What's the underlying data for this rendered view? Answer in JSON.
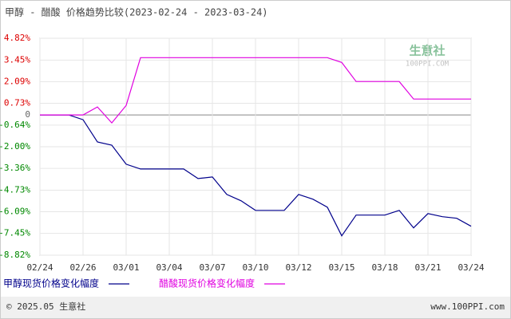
{
  "chart_data": {
    "type": "line",
    "title": "甲醇 - 醋酸 价格趋势比较(2023-02-24 - 2023-03-24)",
    "categories": [
      "02/24",
      null,
      null,
      "02/26",
      null,
      null,
      "03/01",
      null,
      null,
      "03/04",
      null,
      null,
      "03/07",
      null,
      null,
      "03/10",
      null,
      null,
      "03/12",
      null,
      null,
      "03/15",
      null,
      null,
      "03/18",
      null,
      null,
      "03/21",
      null,
      null,
      "03/24"
    ],
    "series": [
      {
        "name": "甲醇现货价格变化幅度",
        "color": "#00008b",
        "values": [
          0,
          0,
          0,
          -0.3,
          -1.7,
          -1.9,
          -3.1,
          -3.4,
          -3.4,
          -3.4,
          -3.4,
          -4.0,
          -3.9,
          -5.0,
          -5.4,
          -6.0,
          -6.0,
          -6.0,
          -5.0,
          -5.3,
          -5.8,
          -7.6,
          -6.3,
          -6.3,
          -6.3,
          -6.0,
          -7.1,
          -6.2,
          -6.4,
          -6.5,
          -7.0
        ]
      },
      {
        "name": "醋酸现货价格变化幅度",
        "color": "#e000e0",
        "values": [
          0,
          0,
          0,
          0,
          0.5,
          -0.5,
          0.6,
          3.6,
          3.6,
          3.6,
          3.6,
          3.6,
          3.6,
          3.6,
          3.6,
          3.6,
          3.6,
          3.6,
          3.6,
          3.6,
          3.6,
          3.3,
          2.1,
          2.1,
          2.1,
          2.1,
          1.0,
          1.0,
          1.0,
          1.0,
          1.0
        ]
      }
    ],
    "ylim": [
      -8.82,
      4.82
    ],
    "yticks": [
      {
        "value": 4.82,
        "label": "4.82%"
      },
      {
        "value": 3.45,
        "label": "3.45%"
      },
      {
        "value": 2.09,
        "label": "2.09%"
      },
      {
        "value": 0.73,
        "label": "0.73%"
      },
      0,
      {
        "value": -0.64,
        "label": "-0.64%"
      },
      {
        "value": -2.0,
        "label": "-2.00%"
      },
      {
        "value": -3.36,
        "label": "-3.36%"
      },
      {
        "value": -4.73,
        "label": "-4.73%"
      },
      {
        "value": -6.09,
        "label": "-6.09%"
      },
      {
        "value": -7.45,
        "label": "-7.45%"
      },
      {
        "value": -8.82,
        "label": "-8.82%"
      }
    ],
    "grid": true,
    "watermark": "生意社",
    "watermark_url": "100PPI.COM",
    "footer_left": "© 2025.05 生意社",
    "footer_right": "www.100PPI.com"
  }
}
